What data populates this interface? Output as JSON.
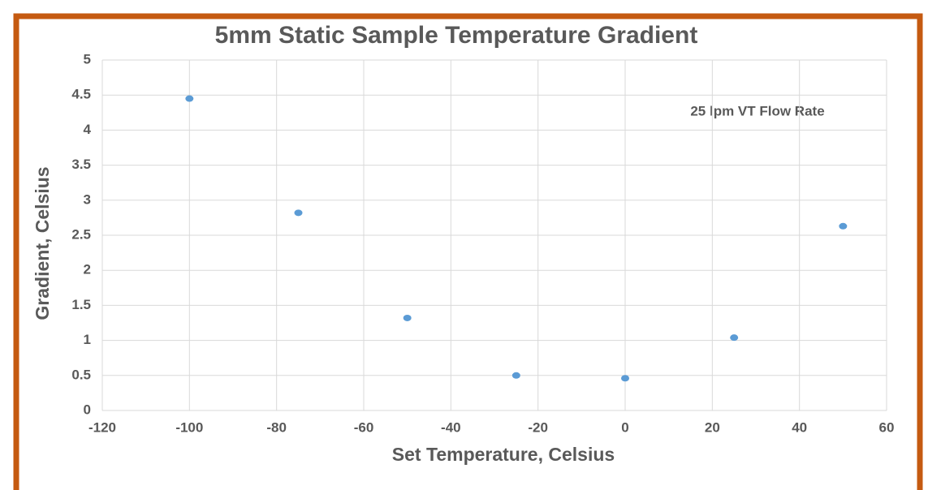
{
  "chart_data": {
    "type": "scatter",
    "title": "5mm Static Sample Temperature Gradient",
    "x_label": "Set Temperature, Celsius",
    "y_label": "Gradient, Celsius",
    "annotation": "25 lpm VT Flow Rate",
    "series": [
      {
        "color": "#5b9bd5",
        "x": [
          -100,
          -75,
          -50,
          -25,
          0,
          25,
          50
        ],
        "values": [
          4.45,
          2.82,
          1.32,
          0.5,
          0.46,
          1.04,
          2.63
        ]
      }
    ],
    "xlim": [
      -120,
      60
    ],
    "xticks": [
      -120,
      -100,
      -80,
      -60,
      -40,
      -20,
      0,
      20,
      40,
      60
    ],
    "ylim": [
      0,
      5
    ],
    "yticks": [
      0,
      0.5,
      1,
      1.5,
      2,
      2.5,
      3,
      3.5,
      4,
      4.5,
      5
    ],
    "grid": true
  }
}
